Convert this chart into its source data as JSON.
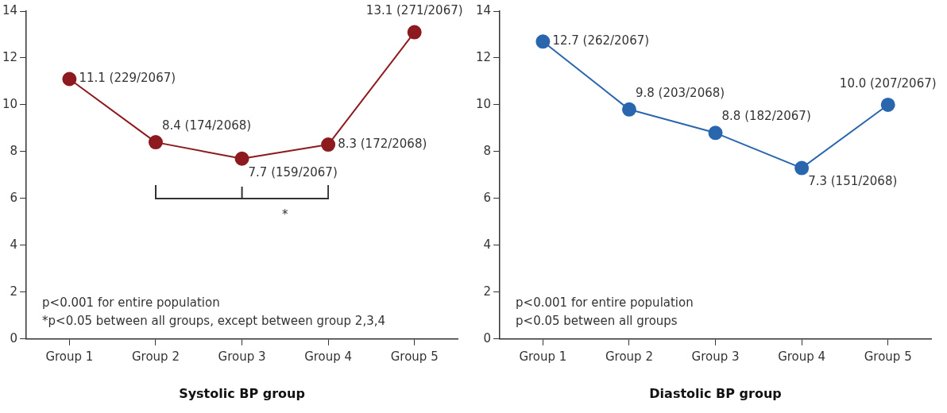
{
  "chart_data": [
    {
      "type": "line",
      "xlabel": "Systolic BP group",
      "categories": [
        "Group 1",
        "Group 2",
        "Group 3",
        "Group 4",
        "Group 5"
      ],
      "series": [
        {
          "color": "#8c1a1e",
          "values": [
            11.1,
            8.4,
            7.7,
            8.3,
            13.1
          ],
          "value_labels": [
            "11.1 (229/2067)",
            "8.4 (174/2068)",
            "7.7 (159/2067)",
            "8.3 (172/2068)",
            "13.1 (271/2067)"
          ]
        }
      ],
      "ylim": [
        0,
        14
      ],
      "yticks": [
        0,
        2,
        4,
        6,
        8,
        10,
        12,
        14
      ],
      "marker": "circle",
      "line_style": "solid",
      "legend": false,
      "annotations": [
        "p<0.001 for entire population",
        "*p<0.05 between all groups, except between group 2,3,4",
        {
          "text": "*"
        }
      ]
    },
    {
      "type": "line",
      "xlabel": "Diastolic BP group",
      "categories": [
        "Group 1",
        "Group 2",
        "Group 3",
        "Group 4",
        "Group 5"
      ],
      "series": [
        {
          "color": "#2a66ae",
          "values": [
            12.7,
            9.8,
            8.8,
            7.3,
            10.0
          ],
          "value_labels": [
            "12.7 (262/2067)",
            "9.8 (203/2068)",
            "8.8 (182/2067)",
            "7.3 (151/2068)",
            "10.0 (207/2067)"
          ]
        }
      ],
      "ylim": [
        0,
        14
      ],
      "yticks": [
        0,
        2,
        4,
        6,
        8,
        10,
        12,
        14
      ],
      "marker": "circle",
      "line_style": "solid",
      "legend": false,
      "annotations": [
        "p<0.001 for entire population",
        "p<0.05 between all groups"
      ]
    }
  ]
}
